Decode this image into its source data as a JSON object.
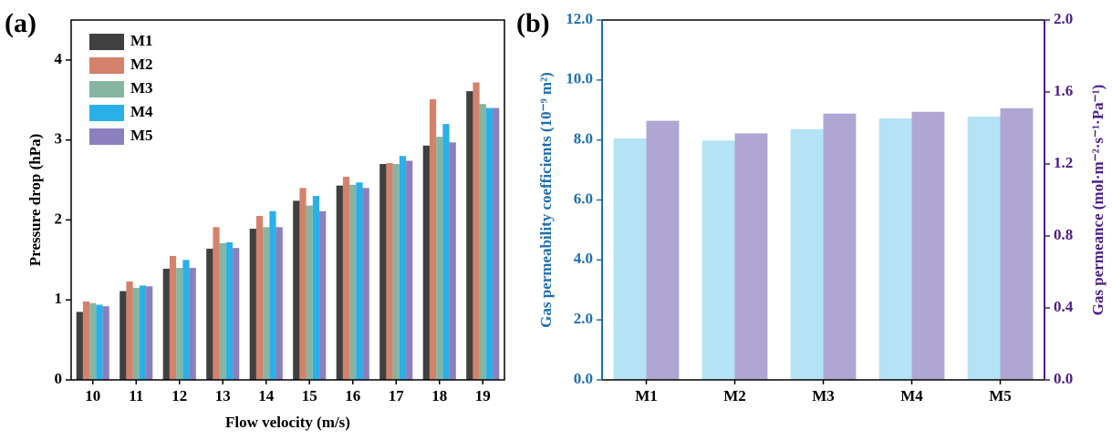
{
  "chart_data": [
    {
      "type": "bar",
      "panel_label": "(a)",
      "xlabel": "Flow velocity (m/s)",
      "ylabel": "Pressure drop (hPa)",
      "categories": [
        "10",
        "11",
        "12",
        "13",
        "14",
        "15",
        "16",
        "17",
        "18",
        "19"
      ],
      "series": [
        {
          "name": "M1",
          "color": "#404040",
          "values": [
            0.85,
            1.11,
            1.39,
            1.64,
            1.89,
            2.24,
            2.43,
            2.7,
            2.93,
            3.61
          ]
        },
        {
          "name": "M2",
          "color": "#d4826b",
          "values": [
            0.98,
            1.23,
            1.55,
            1.91,
            2.05,
            2.4,
            2.54,
            2.71,
            3.51,
            3.72
          ]
        },
        {
          "name": "M3",
          "color": "#86b5a1",
          "values": [
            0.96,
            1.15,
            1.4,
            1.71,
            1.91,
            2.18,
            2.44,
            2.7,
            3.04,
            3.45
          ]
        },
        {
          "name": "M4",
          "color": "#2ab0e8",
          "values": [
            0.94,
            1.18,
            1.5,
            1.72,
            2.11,
            2.3,
            2.47,
            2.8,
            3.2,
            3.4
          ]
        },
        {
          "name": "M5",
          "color": "#8c7fbd",
          "values": [
            0.92,
            1.17,
            1.4,
            1.65,
            1.91,
            2.11,
            2.4,
            2.74,
            2.97,
            3.4
          ]
        }
      ],
      "ylim": [
        0,
        4.5
      ],
      "yticks": [
        0,
        1,
        2,
        3,
        4
      ],
      "legend": "upper left"
    },
    {
      "type": "bar",
      "panel_label": "(b)",
      "ylabel": "Gas permeability coefficients (10⁻⁹ m²)",
      "y2label": "Gas permeance (mol·m⁻²·s⁻¹·Pa⁻¹)",
      "y_axis_color": "#1f6eb0",
      "y2_axis_color": "#4b1e8a",
      "categories": [
        "M1",
        "M2",
        "M3",
        "M4",
        "M5"
      ],
      "series": [
        {
          "color": "#b3e3f5",
          "values": [
            8.05,
            7.98,
            8.36,
            8.72,
            8.78
          ]
        },
        {
          "color": "#b0a6d3",
          "axis": "y2",
          "values": [
            1.44,
            1.37,
            1.48,
            1.49,
            1.51
          ]
        }
      ],
      "ylim": [
        0,
        12
      ],
      "yticks": [
        {
          "value": 0,
          "label": "0.0"
        },
        {
          "value": 2,
          "label": "2.0"
        },
        {
          "value": 4,
          "label": "4.0"
        },
        {
          "value": 6,
          "label": "6.0"
        },
        {
          "value": 8,
          "label": "8.0"
        },
        {
          "value": 10,
          "label": "10.0"
        },
        {
          "value": 12,
          "label": "12.0"
        }
      ],
      "y2lim": [
        0,
        2
      ],
      "y2ticks": [
        {
          "value": 0,
          "label": "0.0"
        },
        {
          "value": 0.4,
          "label": "0.4"
        },
        {
          "value": 0.8,
          "label": "0.8"
        },
        {
          "value": 1.2,
          "label": "1.2"
        },
        {
          "value": 1.6,
          "label": "1.6"
        },
        {
          "value": 2,
          "label": "2.0"
        }
      ]
    }
  ]
}
